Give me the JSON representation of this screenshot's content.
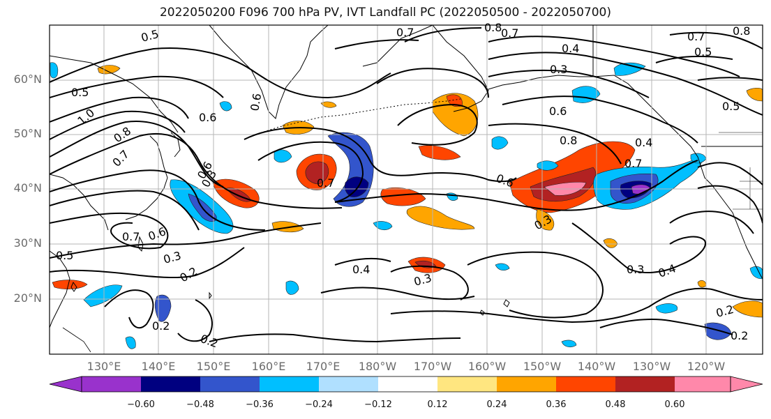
{
  "title": "2022050200 F096 700 hPa PV, IVT Landfall PC (2022050500 - 2022050700)",
  "lat_labels": [
    "60°N",
    "50°N",
    "40°N",
    "30°N",
    "20°N"
  ],
  "lon_labels": [
    "130°E",
    "140°E",
    "150°E",
    "160°E",
    "170°E",
    "180°W",
    "170°W",
    "160°W",
    "150°W",
    "140°W",
    "130°W",
    "120°W"
  ],
  "contour_labels": [
    "0.5",
    "0.7",
    "0.8",
    "0.7",
    "0.4",
    "0.7",
    "0.5",
    "0.8",
    "0.3",
    "0.5",
    "1.0",
    "0.6",
    "0.5",
    "0.6",
    "0.6",
    "0.8",
    "0.7",
    "0.6",
    "0.8",
    "0.7",
    "0.7",
    "0.6",
    "0.4",
    "0.3",
    "0.7",
    "0.6",
    "0.3",
    "0.5",
    "0.3",
    "0.2",
    "0.4",
    "0.3",
    "0.3",
    "0.4",
    "0.2",
    "0.2",
    "0.2",
    "0.2"
  ],
  "colorbar": {
    "ticks": [
      "−0.60",
      "−0.48",
      "−0.36",
      "−0.24",
      "−0.12",
      "0.12",
      "0.24",
      "0.36",
      "0.48",
      "0.60"
    ],
    "colors": [
      "#9932cc",
      "#000080",
      "#3355cc",
      "#00bfff",
      "#b0e0ff",
      "#ffffff",
      "#ffe680",
      "#ffa500",
      "#ff4500",
      "#b22222",
      "#ff88aa"
    ]
  }
}
